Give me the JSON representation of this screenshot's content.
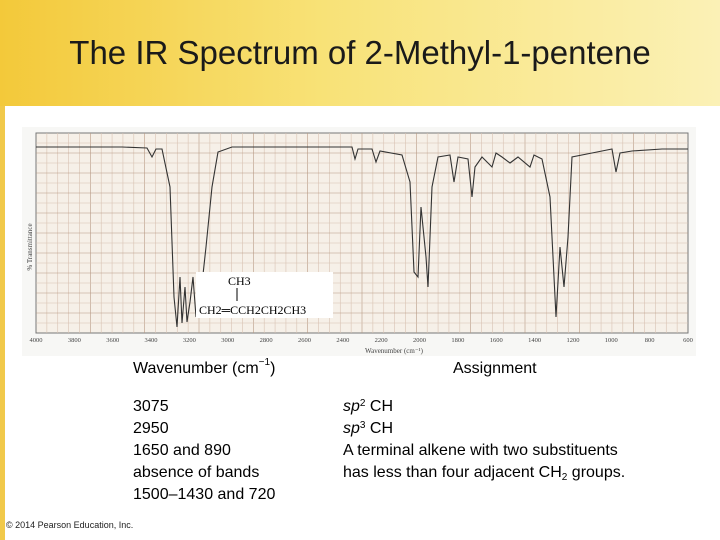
{
  "slide": {
    "title": "The IR Spectrum of 2-Methyl-1-pentene",
    "copyright": "© 2014 Pearson Education, Inc."
  },
  "spectrum": {
    "y_axis_label": "% Transmittance",
    "x_axis_label": "Wavenumber (cm⁻¹)",
    "x_ticks": [
      "4000",
      "3800",
      "3600",
      "3400",
      "3200",
      "3000",
      "2800",
      "2600",
      "2400",
      "2200",
      "2000",
      "1800",
      "1600",
      "1400",
      "1200",
      "1000",
      "800",
      "600"
    ],
    "structure_top": "CH3",
    "structure_main": "CH2═CCH2CH2CH3"
  },
  "table": {
    "col1_header": "Wavenumber (cm",
    "col1_header_sup": "−1",
    "col1_header_end": ")",
    "col2_header": "Assignment",
    "wavenumbers": [
      "3075",
      "2950",
      "1650 and 890",
      "absence of bands",
      "1500–1430 and 720"
    ],
    "assignments": {
      "r1_pre": "sp",
      "r1_sup": "2",
      "r1_post": " CH",
      "r2_pre": "sp",
      "r2_sup": "3",
      "r2_post": " CH",
      "r3": "A terminal alkene with two substituents",
      "r4_pre": "has less than four adjacent CH",
      "r4_sub": "2",
      "r4_post": " groups."
    }
  }
}
